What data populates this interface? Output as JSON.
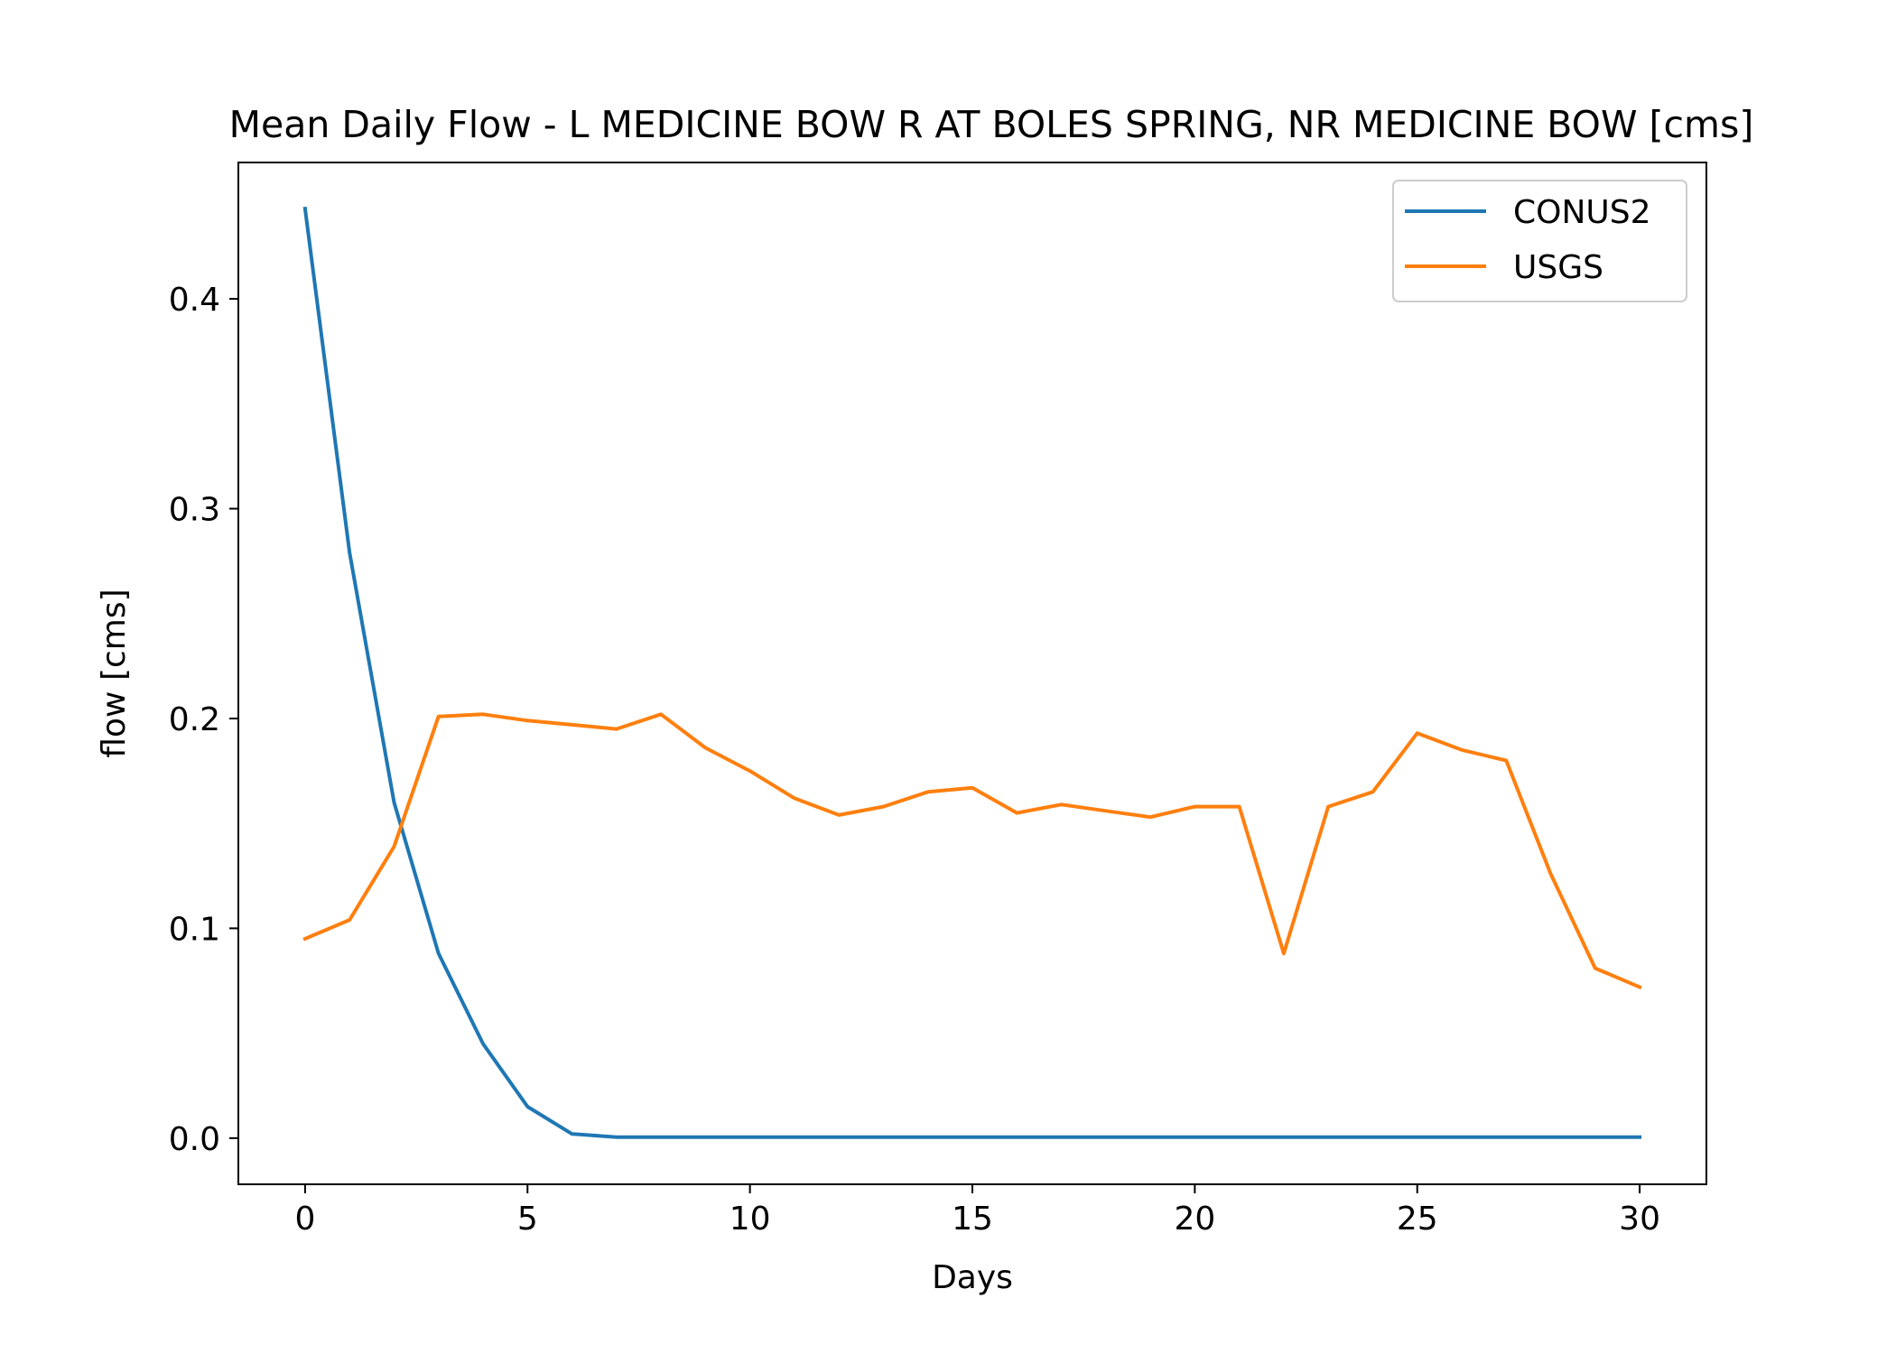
{
  "chart_data": {
    "type": "line",
    "title": "Mean Daily Flow - L MEDICINE BOW R AT BOLES SPRING, NR MEDICINE BOW [cms]",
    "xlabel": "Days",
    "ylabel": "flow [cms]",
    "xlim": [
      -1.5,
      31.5
    ],
    "ylim": [
      -0.022,
      0.465
    ],
    "xticks": [
      0,
      5,
      10,
      15,
      20,
      25,
      30
    ],
    "yticks": [
      0.0,
      0.1,
      0.2,
      0.3,
      0.4
    ],
    "ytick_labels": [
      "0.0",
      "0.1",
      "0.2",
      "0.3",
      "0.4"
    ],
    "grid": false,
    "legend_position": "top-right",
    "x": [
      0,
      1,
      2,
      3,
      4,
      5,
      6,
      7,
      8,
      9,
      10,
      11,
      12,
      13,
      14,
      15,
      16,
      17,
      18,
      19,
      20,
      21,
      22,
      23,
      24,
      25,
      26,
      27,
      28,
      29,
      30
    ],
    "series": [
      {
        "name": "CONUS2",
        "color": "#1f77b4",
        "values": [
          0.443,
          0.279,
          0.16,
          0.088,
          0.045,
          0.015,
          0.002,
          0.0005,
          0.0005,
          0.0005,
          0.0005,
          0.0005,
          0.0005,
          0.0005,
          0.0005,
          0.0005,
          0.0005,
          0.0005,
          0.0005,
          0.0005,
          0.0005,
          0.0005,
          0.0005,
          0.0005,
          0.0005,
          0.0005,
          0.0005,
          0.0005,
          0.0005,
          0.0005,
          0.0005
        ]
      },
      {
        "name": "USGS",
        "color": "#ff7f0e",
        "values": [
          0.095,
          0.104,
          0.139,
          0.201,
          0.202,
          0.199,
          0.197,
          0.195,
          0.202,
          0.186,
          0.175,
          0.162,
          0.154,
          0.158,
          0.165,
          0.167,
          0.155,
          0.159,
          0.156,
          0.153,
          0.158,
          0.158,
          0.088,
          0.158,
          0.165,
          0.193,
          0.185,
          0.18,
          0.126,
          0.081,
          0.072
        ]
      }
    ]
  }
}
